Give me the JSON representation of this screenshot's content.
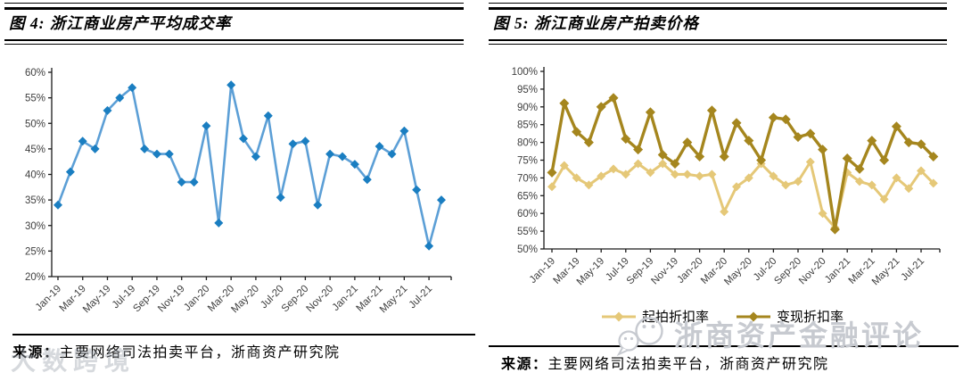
{
  "figure4": {
    "title": "图 4:  浙江商业房产平均成交率",
    "source_label": "来源：",
    "source_text": "主要网络司法拍卖平台，浙商资产研究院"
  },
  "figure5": {
    "title": "图 5:  浙江商业房产拍卖价格",
    "source_label": "来源：",
    "source_text": "主要网络司法拍卖平台，浙商资产研究院"
  },
  "watermarks": {
    "bottom_left": "大数跨境",
    "bottom_right": "浙商资产金融评论"
  },
  "colors": {
    "blue_line": "#5C9FD6",
    "blue_marker": "#1A7EC1",
    "light_gold": "#E5C878",
    "dark_gold": "#A5861E",
    "axis": "#1a1a1a",
    "tick_label": "#3f3f3f",
    "watermark_gray": "#c7cad0"
  },
  "chart_data": [
    {
      "type": "line",
      "title": "浙江商业房产平均成交率",
      "x": [
        "Jan-19",
        "Feb-19",
        "Mar-19",
        "Apr-19",
        "May-19",
        "Jun-19",
        "Jul-19",
        "Aug-19",
        "Sep-19",
        "Oct-19",
        "Nov-19",
        "Dec-19",
        "Jan-20",
        "Feb-20",
        "Mar-20",
        "Apr-20",
        "May-20",
        "Jun-20",
        "Jul-20",
        "Aug-20",
        "Sep-20",
        "Oct-20",
        "Nov-20",
        "Dec-20",
        "Jan-21",
        "Feb-21",
        "Mar-21",
        "Apr-21",
        "May-21",
        "Jun-21",
        "Jul-21",
        "Aug-21"
      ],
      "x_tick_step": 2,
      "ylim": [
        20,
        60
      ],
      "ytick_step": 5,
      "y_unit": "%",
      "grid": false,
      "legend": "none",
      "series": [
        {
          "name": "平均成交率",
          "color": "#5C9FD6",
          "marker_color": "#1A7EC1",
          "values": [
            34,
            40.5,
            46.5,
            45,
            52.5,
            55,
            57,
            45,
            44,
            44,
            38.5,
            38.5,
            49.5,
            30.5,
            57.5,
            47,
            43.5,
            51.5,
            35.5,
            46,
            46.5,
            34,
            44,
            43.5,
            42,
            39,
            45.5,
            44,
            48.5,
            37,
            26,
            35
          ]
        }
      ]
    },
    {
      "type": "line",
      "title": "浙江商业房产拍卖价格",
      "x": [
        "Jan-19",
        "Feb-19",
        "Mar-19",
        "Apr-19",
        "May-19",
        "Jun-19",
        "Jul-19",
        "Aug-19",
        "Sep-19",
        "Oct-19",
        "Nov-19",
        "Dec-19",
        "Jan-20",
        "Feb-20",
        "Mar-20",
        "Apr-20",
        "May-20",
        "Jun-20",
        "Jul-20",
        "Aug-20",
        "Sep-20",
        "Oct-20",
        "Nov-20",
        "Dec-20",
        "Jan-21",
        "Feb-21",
        "Mar-21",
        "Apr-21",
        "May-21",
        "Jun-21",
        "Jul-21",
        "Aug-21"
      ],
      "x_tick_step": 2,
      "ylim": [
        50,
        100
      ],
      "ytick_step": 5,
      "y_unit": "%",
      "grid": false,
      "legend": "bottom",
      "series": [
        {
          "name": "起拍折扣率",
          "color": "#E5C878",
          "marker_color": "#E5C878",
          "values": [
            67.5,
            73.5,
            70,
            68,
            70.5,
            72.5,
            71,
            74,
            71.5,
            74,
            71,
            71,
            70.5,
            71,
            60.5,
            67.5,
            70,
            74,
            70.5,
            68,
            69,
            74.5,
            60,
            56,
            71.5,
            69,
            68,
            64,
            70,
            67,
            72,
            68.5
          ]
        },
        {
          "name": "变现折扣率",
          "color": "#A5861E",
          "marker_color": "#A5861E",
          "values": [
            71.5,
            91,
            83,
            80,
            90,
            92.5,
            81,
            78,
            88.5,
            76.5,
            74,
            80,
            76,
            89,
            76,
            85.5,
            80.5,
            75,
            87,
            86.5,
            81.5,
            82.5,
            78,
            55.5,
            75.5,
            72.5,
            80.5,
            75,
            84.5,
            80,
            79.5,
            76
          ]
        }
      ]
    }
  ]
}
